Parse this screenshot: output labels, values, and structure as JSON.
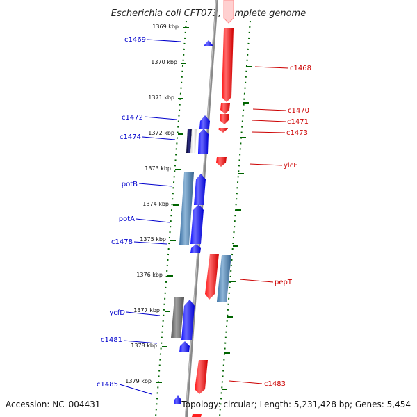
{
  "title": "Escherichia coli CFT073, complete genome",
  "footer": {
    "accession": "Accession: NC_004431",
    "topology": "Topology: circular; Length: 5,231,428 bp; Genes: 5,454"
  },
  "colors": {
    "forward": "#0000ff",
    "reverse": "#ff0000",
    "steelblue": "#4682b4",
    "gray": "#707070",
    "navy": "#0a0a50",
    "tick": "#006400"
  },
  "ticks": [
    {
      "label": "1369 kbp"
    },
    {
      "label": "1370 kbp"
    },
    {
      "label": "1371 kbp"
    },
    {
      "label": "1372 kbp"
    },
    {
      "label": "1373 kbp"
    },
    {
      "label": "1374 kbp"
    },
    {
      "label": "1375 kbp"
    },
    {
      "label": "1376 kbp"
    },
    {
      "label": "1377 kbp"
    },
    {
      "label": "1378 kbp"
    },
    {
      "label": "1379 kbp"
    }
  ],
  "left_labels": [
    {
      "text": "c1469"
    },
    {
      "text": "c1472"
    },
    {
      "text": "c1474"
    },
    {
      "text": "potB"
    },
    {
      "text": "potA"
    },
    {
      "text": "c1478"
    },
    {
      "text": "ycfD"
    },
    {
      "text": "c1481"
    },
    {
      "text": "c1485"
    }
  ],
  "right_labels": [
    {
      "text": "c1468"
    },
    {
      "text": "c1470"
    },
    {
      "text": "c1471"
    },
    {
      "text": "c1473"
    },
    {
      "text": "ylcE"
    },
    {
      "text": "pepT"
    },
    {
      "text": "c1483"
    }
  ]
}
